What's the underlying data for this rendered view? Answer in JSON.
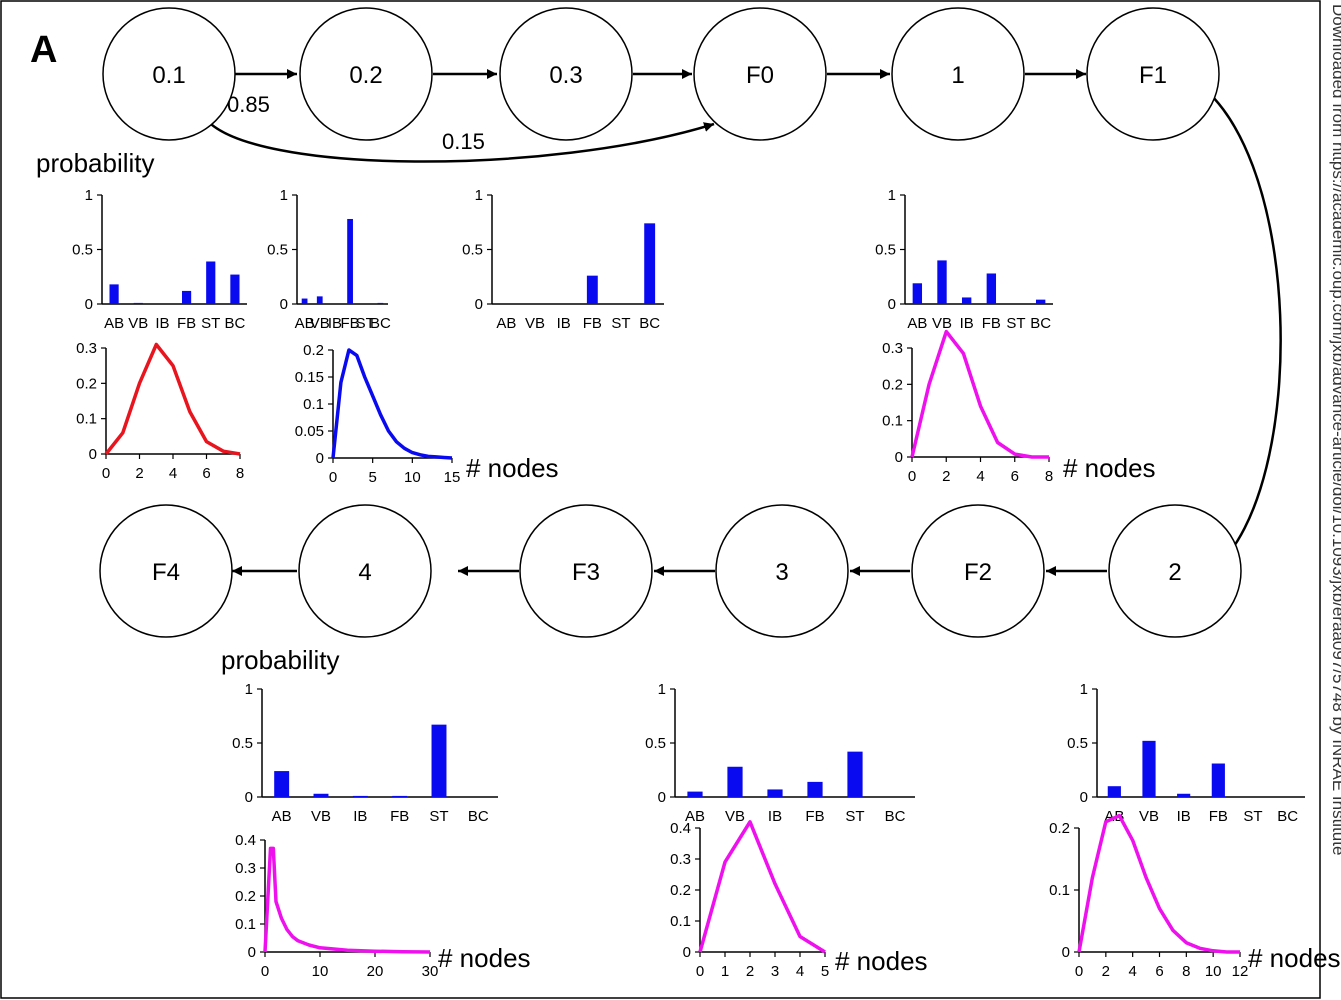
{
  "panel_label": "A",
  "watermark": "Downloaded from https://academic.oup.com/jxb/advance-article/doi/10.1093/jxb/eraa097/5748 by INRAE Institute",
  "probability_label": "probability",
  "nodes_label": "# nodes",
  "colors": {
    "bar": "#0a0af0",
    "red": "#e8141e",
    "blue": "#0a0af0",
    "magenta": "#ee11ee"
  },
  "states": {
    "s01": "0.1",
    "s02": "0.2",
    "s03": "0.3",
    "F0": "F0",
    "s1": "1",
    "F1": "F1",
    "s2": "2",
    "F2": "F2",
    "s3": "3",
    "F3": "F3",
    "s4": "4",
    "F4": "F4"
  },
  "transitions": {
    "p085": "0.85",
    "p015": "0.15"
  },
  "chart_data": [
    {
      "id": "bar_s01",
      "type": "bar",
      "categories": [
        "AB",
        "VB",
        "IB",
        "FB",
        "ST",
        "BC"
      ],
      "values": [
        0.18,
        0.01,
        0,
        0.12,
        0.39,
        0.27
      ],
      "ylim": [
        0,
        1
      ],
      "yticks": [
        "0",
        "0.5",
        "1"
      ]
    },
    {
      "id": "bar_s02",
      "type": "bar",
      "categories": [
        "AB",
        "VB",
        "IB",
        "FB",
        "ST",
        "BC"
      ],
      "values": [
        0.05,
        0.07,
        0,
        0.78,
        0,
        0.01
      ],
      "ylim": [
        0,
        1
      ],
      "yticks": [
        "0",
        "0.5",
        "1"
      ]
    },
    {
      "id": "bar_s03",
      "type": "bar",
      "categories": [
        "AB",
        "VB",
        "IB",
        "FB",
        "ST",
        "BC"
      ],
      "values": [
        0,
        0,
        0,
        0.26,
        0,
        0.74
      ],
      "ylim": [
        0,
        1
      ],
      "yticks": [
        "0",
        "0.5",
        "1"
      ]
    },
    {
      "id": "bar_s1",
      "type": "bar",
      "categories": [
        "AB",
        "VB",
        "IB",
        "FB",
        "ST",
        "BC"
      ],
      "values": [
        0.19,
        0.4,
        0.06,
        0.28,
        0,
        0.04
      ],
      "ylim": [
        0,
        1
      ],
      "yticks": [
        "0",
        "0.5",
        "1"
      ]
    },
    {
      "id": "bar_s4",
      "type": "bar",
      "categories": [
        "AB",
        "VB",
        "IB",
        "FB",
        "ST",
        "BC"
      ],
      "values": [
        0.24,
        0.03,
        0.01,
        0.01,
        0.67,
        0
      ],
      "ylim": [
        0,
        1
      ],
      "yticks": [
        "0",
        "0.5",
        "1"
      ]
    },
    {
      "id": "bar_s3",
      "type": "bar",
      "categories": [
        "AB",
        "VB",
        "IB",
        "FB",
        "ST",
        "BC"
      ],
      "values": [
        0.05,
        0.28,
        0.07,
        0.14,
        0.42,
        0
      ],
      "ylim": [
        0,
        1
      ],
      "yticks": [
        "0",
        "0.5",
        "1"
      ]
    },
    {
      "id": "bar_s2",
      "type": "bar",
      "categories": [
        "AB",
        "VB",
        "IB",
        "FB",
        "ST",
        "BC"
      ],
      "values": [
        0.1,
        0.52,
        0.03,
        0.31,
        0,
        0
      ],
      "ylim": [
        0,
        1
      ],
      "yticks": [
        "0",
        "0.5",
        "1"
      ]
    },
    {
      "id": "line_s01",
      "type": "line",
      "color": "red",
      "x": [
        0,
        1,
        2,
        3,
        4,
        5,
        6,
        7,
        8
      ],
      "y": [
        0,
        0.06,
        0.2,
        0.31,
        0.25,
        0.12,
        0.035,
        0.008,
        0
      ],
      "xlim": [
        0,
        8
      ],
      "ylim": [
        0,
        0.3
      ],
      "xticks": [
        "0",
        "2",
        "4",
        "6",
        "8"
      ],
      "yticks": [
        "0",
        "0.1",
        "0.2",
        "0.3"
      ]
    },
    {
      "id": "line_s02",
      "type": "line",
      "color": "blue",
      "x": [
        0,
        1,
        2,
        3,
        4,
        5,
        6,
        7,
        8,
        9,
        10,
        11,
        12,
        13,
        14,
        15
      ],
      "y": [
        0,
        0.14,
        0.2,
        0.19,
        0.15,
        0.115,
        0.08,
        0.05,
        0.03,
        0.018,
        0.01,
        0.006,
        0.003,
        0.002,
        0.001,
        0
      ],
      "xlim": [
        0,
        15
      ],
      "ylim": [
        0,
        0.2
      ],
      "xticks": [
        "0",
        "5",
        "10",
        "15"
      ],
      "yticks": [
        "0",
        "0.05",
        "0.1",
        "0.15",
        "0.2"
      ]
    },
    {
      "id": "line_s1",
      "type": "line",
      "color": "magenta",
      "x": [
        0,
        1,
        2,
        3,
        4,
        5,
        6,
        7,
        8
      ],
      "y": [
        0,
        0.2,
        0.345,
        0.285,
        0.14,
        0.04,
        0.008,
        0,
        0
      ],
      "xlim": [
        0,
        8
      ],
      "ylim": [
        0,
        0.3
      ],
      "xticks": [
        "0",
        "2",
        "4",
        "6",
        "8"
      ],
      "yticks": [
        "0",
        "0.1",
        "0.2",
        "0.3"
      ]
    },
    {
      "id": "line_s4",
      "type": "line",
      "color": "magenta",
      "x": [
        0,
        1,
        1.5,
        2,
        3,
        4,
        5,
        6,
        8,
        10,
        15,
        20,
        25,
        30
      ],
      "y": [
        0,
        0.37,
        0.37,
        0.18,
        0.12,
        0.08,
        0.055,
        0.04,
        0.025,
        0.015,
        0.006,
        0.003,
        0.001,
        0
      ],
      "xlim": [
        0,
        30
      ],
      "ylim": [
        0,
        0.4
      ],
      "xticks": [
        "0",
        "10",
        "20",
        "30"
      ],
      "yticks": [
        "0",
        "0.1",
        "0.2",
        "0.3",
        "0.4"
      ]
    },
    {
      "id": "line_s3",
      "type": "line",
      "color": "magenta",
      "x": [
        0,
        1,
        2,
        3,
        4,
        5
      ],
      "y": [
        0,
        0.29,
        0.42,
        0.22,
        0.05,
        0
      ],
      "xlim": [
        0,
        5
      ],
      "ylim": [
        0,
        0.4
      ],
      "xticks": [
        "0",
        "1",
        "2",
        "3",
        "4",
        "5"
      ],
      "yticks": [
        "0",
        "0.1",
        "0.2",
        "0.3",
        "0.4"
      ]
    },
    {
      "id": "line_s2",
      "type": "line",
      "color": "magenta",
      "x": [
        0,
        1,
        2,
        3,
        4,
        5,
        6,
        7,
        8,
        9,
        10,
        11,
        12
      ],
      "y": [
        0,
        0.12,
        0.21,
        0.22,
        0.18,
        0.12,
        0.07,
        0.035,
        0.015,
        0.006,
        0.002,
        0,
        0
      ],
      "xlim": [
        0,
        12
      ],
      "ylim": [
        0,
        0.2
      ],
      "xticks": [
        "0",
        "2",
        "4",
        "6",
        "8",
        "10",
        "12"
      ],
      "yticks": [
        "0",
        "0.1",
        "0.2"
      ]
    }
  ]
}
